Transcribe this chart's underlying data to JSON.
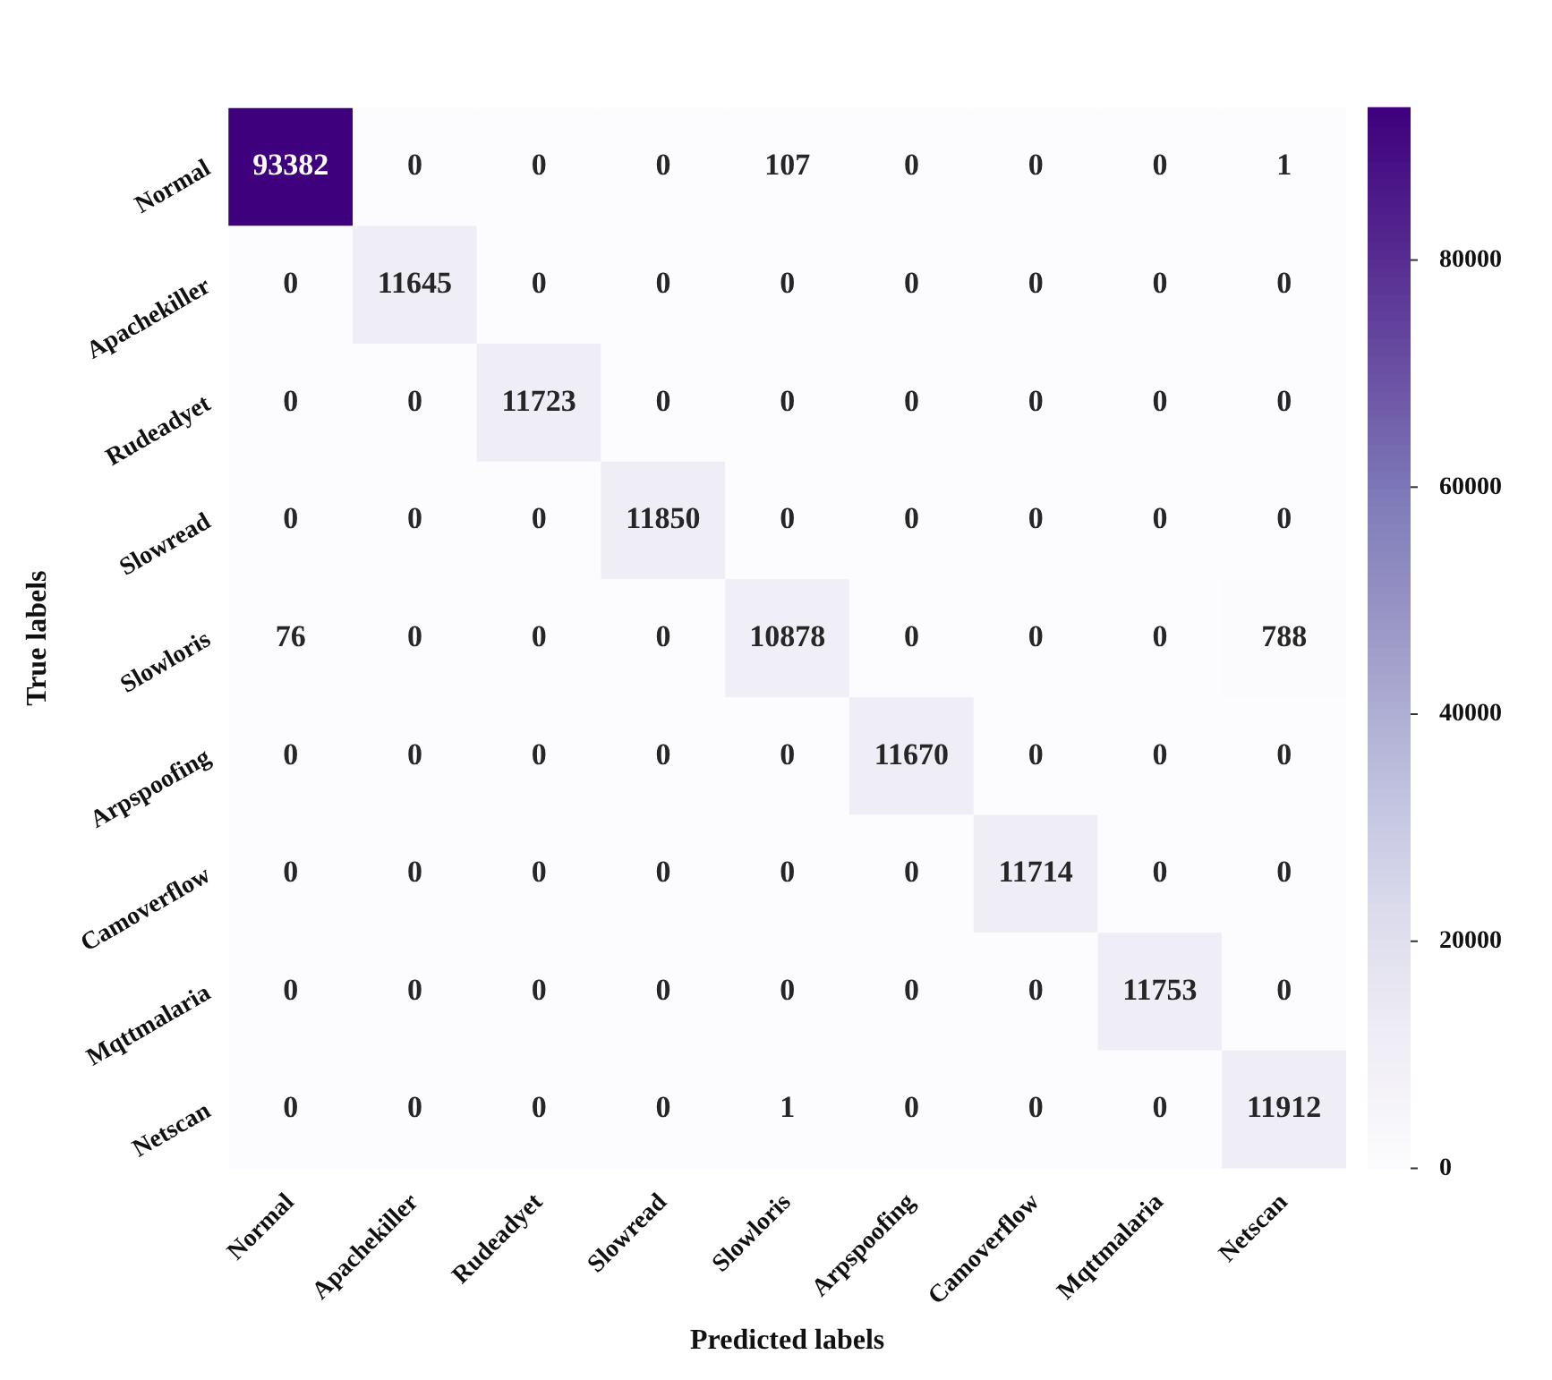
{
  "chart_data": {
    "type": "heatmap",
    "xlabel": "Predicted labels",
    "ylabel": "True labels",
    "categories": [
      "Normal",
      "Apachekiller",
      "Rudeadyet",
      "Slowread",
      "Slowloris",
      "Arpspoofing",
      "Camoverflow",
      "Mqttmalaria",
      "Netscan"
    ],
    "y_categories": [
      "Normal",
      "Apachekiller",
      "Rudeadyet",
      "Slowread",
      "Slowloris",
      "Arpspoofing",
      "Camoverflow",
      "Mqttmalaria",
      "Netscan"
    ],
    "cells": [
      [
        93382,
        0,
        0,
        0,
        107,
        0,
        0,
        0,
        1
      ],
      [
        0,
        11645,
        0,
        0,
        0,
        0,
        0,
        0,
        0
      ],
      [
        0,
        0,
        11723,
        0,
        0,
        0,
        0,
        0,
        0
      ],
      [
        0,
        0,
        0,
        11850,
        0,
        0,
        0,
        0,
        0
      ],
      [
        76,
        0,
        0,
        0,
        10878,
        0,
        0,
        0,
        788
      ],
      [
        0,
        0,
        0,
        0,
        0,
        11670,
        0,
        0,
        0
      ],
      [
        0,
        0,
        0,
        0,
        0,
        0,
        11714,
        0,
        0
      ],
      [
        0,
        0,
        0,
        0,
        0,
        0,
        0,
        11753,
        0
      ],
      [
        0,
        0,
        0,
        0,
        1,
        0,
        0,
        0,
        11912
      ]
    ],
    "clim": [
      0,
      93382
    ],
    "cticks": [
      0,
      20000,
      40000,
      60000,
      80000
    ],
    "data_labels": true
  }
}
